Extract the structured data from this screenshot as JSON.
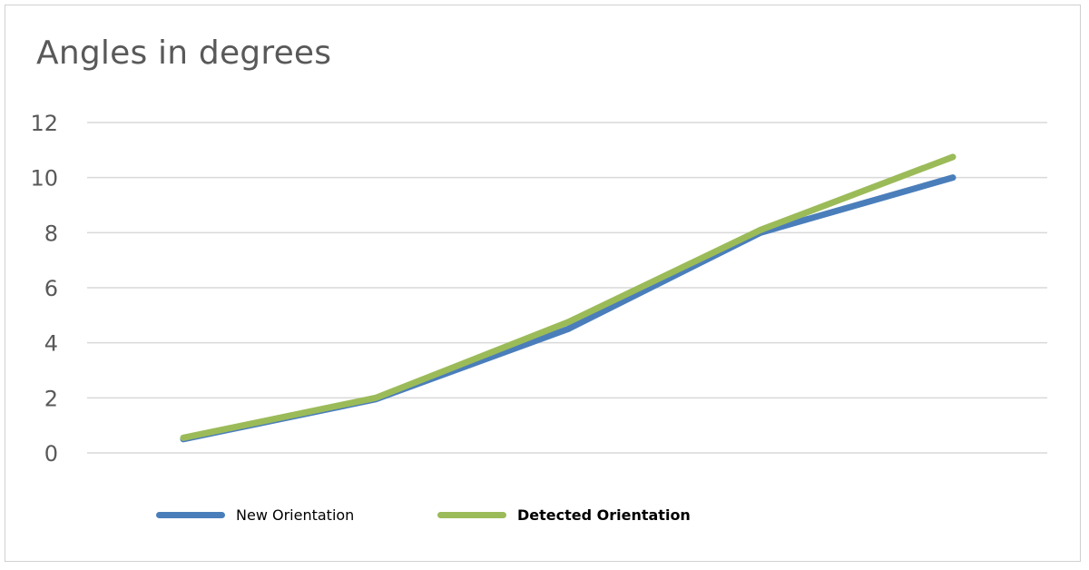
{
  "chart_data": {
    "type": "line",
    "title": "Angles in degrees",
    "xlabel": "",
    "ylabel": "",
    "x": [
      1,
      2,
      3,
      4,
      5
    ],
    "ylim": [
      0,
      12
    ],
    "yticks": [
      "0",
      "2",
      "4",
      "6",
      "8",
      "10",
      "12"
    ],
    "grid": true,
    "legend_position": "bottom",
    "series": [
      {
        "name": "New Orientation",
        "color": "#4a7ebb",
        "values": [
          0.5,
          1.95,
          4.5,
          8.0,
          10.0
        ],
        "label_bold": false
      },
      {
        "name": "Detected Orientation",
        "color": "#9bbb59",
        "values": [
          0.55,
          2.0,
          4.75,
          8.1,
          10.75
        ],
        "label_bold": true
      }
    ]
  }
}
